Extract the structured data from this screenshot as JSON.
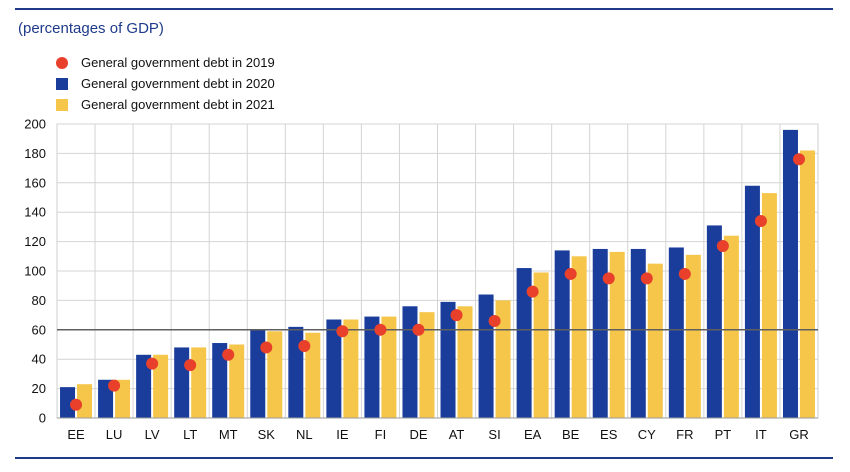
{
  "subtitle": "(percentages of GDP)",
  "chart_data": {
    "type": "bar",
    "categories": [
      "EE",
      "LU",
      "LV",
      "LT",
      "MT",
      "SK",
      "NL",
      "IE",
      "FI",
      "DE",
      "AT",
      "SI",
      "EA",
      "BE",
      "ES",
      "CY",
      "FR",
      "PT",
      "IT",
      "GR"
    ],
    "series": [
      {
        "name": "General government debt in 2019",
        "kind": "dot",
        "color": "#e8402a",
        "values": [
          9,
          22,
          37,
          36,
          43,
          48,
          49,
          59,
          60,
          60,
          70,
          66,
          86,
          98,
          95,
          95,
          98,
          117,
          134,
          176
        ]
      },
      {
        "name": "General government debt in 2020",
        "kind": "bar",
        "color": "#1a3d9c",
        "values": [
          21,
          26,
          43,
          48,
          51,
          60,
          62,
          67,
          69,
          76,
          79,
          84,
          102,
          114,
          115,
          115,
          116,
          131,
          158,
          196
        ]
      },
      {
        "name": "General government debt in 2021",
        "kind": "bar",
        "color": "#f6c64a",
        "values": [
          23,
          26,
          43,
          48,
          50,
          59,
          58,
          67,
          69,
          72,
          76,
          80,
          99,
          110,
          113,
          105,
          111,
          124,
          153,
          182
        ]
      }
    ],
    "reference_line": 60,
    "ylim": [
      0,
      200
    ],
    "yticks": [
      0,
      20,
      40,
      60,
      80,
      100,
      120,
      140,
      160,
      180,
      200
    ],
    "grid": true,
    "legend_position": "top-left"
  }
}
